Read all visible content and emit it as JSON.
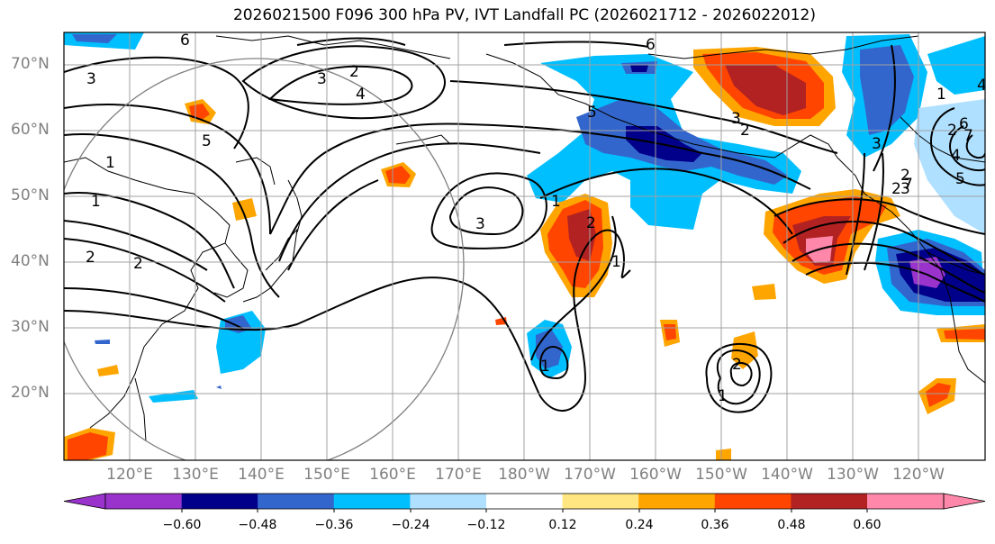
{
  "title": "2026021500 F096 300 hPa PV, IVT Landfall PC (2026021712 - 2026022012)",
  "lat_labels": [
    "70°N",
    "60°N",
    "50°N",
    "40°N",
    "30°N",
    "20°N"
  ],
  "lon_labels": [
    "120°E",
    "130°E",
    "140°E",
    "150°E",
    "160°E",
    "170°E",
    "180°W",
    "170°W",
    "160°W",
    "150°W",
    "140°W",
    "130°W",
    "120°W"
  ],
  "colorbar": {
    "ticks": [
      "−0.60",
      "−0.48",
      "−0.36",
      "−0.24",
      "−0.12",
      "0.12",
      "0.24",
      "0.36",
      "0.48",
      "0.60"
    ],
    "colors": [
      "#9933cc",
      "#00008b",
      "#3366cc",
      "#00bfff",
      "#b0e0ff",
      "#ffffff",
      "#ffe680",
      "#ffa500",
      "#ff4500",
      "#b22222",
      "#ff88aa"
    ]
  },
  "contour_labels": [
    "6",
    "3",
    "3",
    "2",
    "4",
    "6",
    "5",
    "3",
    "2",
    "1",
    "1",
    "3",
    "1",
    "2",
    "1",
    "2",
    "2",
    "1",
    "2",
    "3",
    "4",
    "5",
    "6",
    "1",
    "2",
    "2",
    "3",
    "4",
    "5",
    "7",
    "2",
    "1",
    "7"
  ]
}
